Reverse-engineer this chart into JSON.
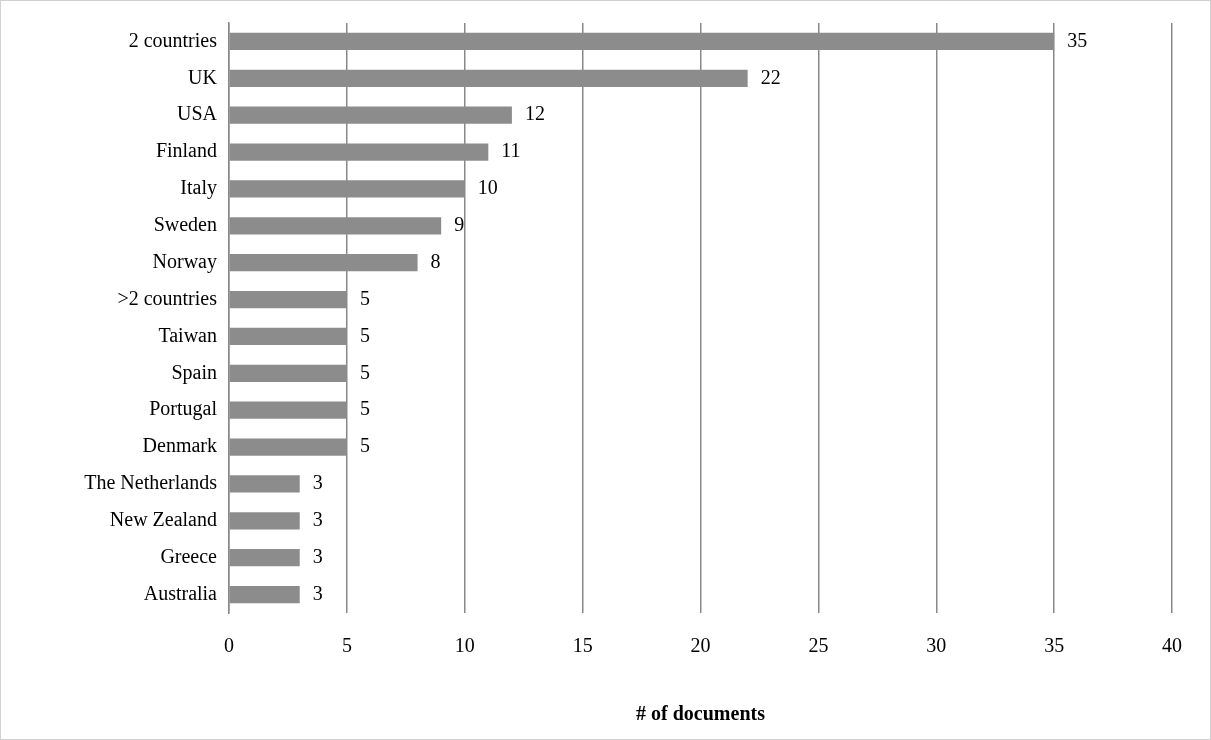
{
  "chart_data": {
    "type": "bar",
    "orientation": "horizontal",
    "xlabel": "# of documents",
    "categories": [
      "2 countries",
      "UK",
      "USA",
      "Finland",
      "Italy",
      "Sweden",
      "Norway",
      ">2 countries",
      "Taiwan",
      "Spain",
      "Portugal",
      "Denmark",
      "The Netherlands",
      "New Zealand",
      "Greece",
      "Australia"
    ],
    "values": [
      35,
      22,
      12,
      11,
      10,
      9,
      8,
      5,
      5,
      5,
      5,
      5,
      3,
      3,
      3,
      3
    ],
    "color": "#8c8c8c",
    "xlim": [
      0,
      40
    ],
    "xticks": [
      0,
      5,
      10,
      15,
      20,
      25,
      30,
      35,
      40
    ],
    "grid": "x",
    "data_labels": true,
    "legend": false
  }
}
